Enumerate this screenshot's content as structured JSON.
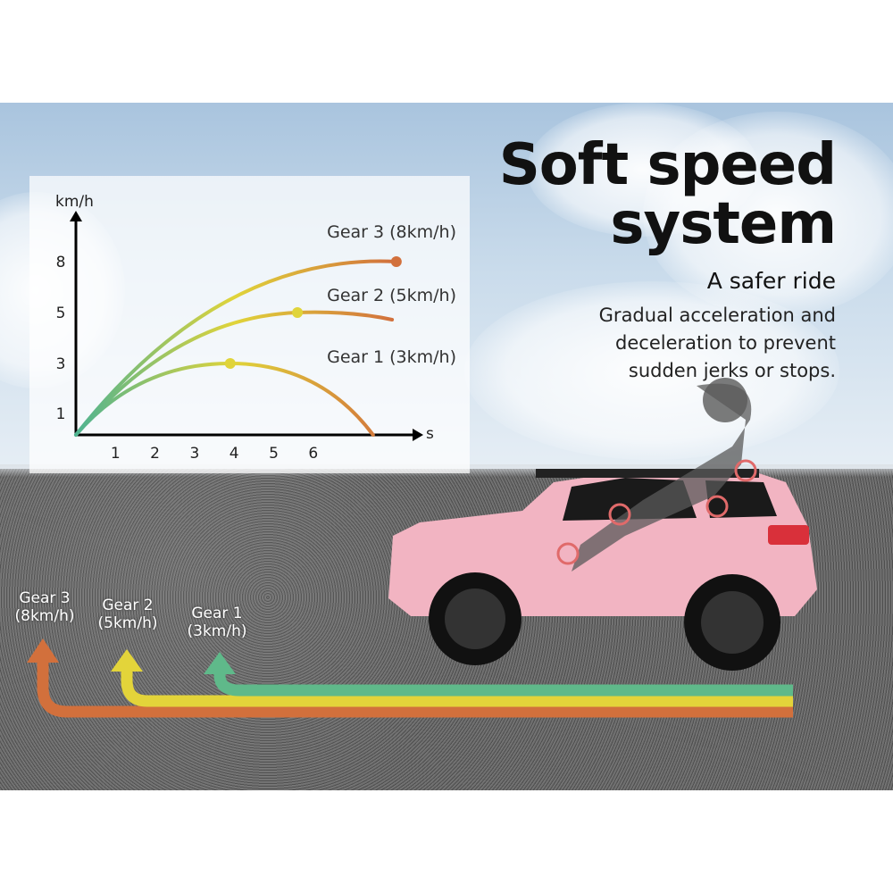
{
  "headline": {
    "line1": "Soft speed",
    "line2": "system"
  },
  "subheadline": "A safer ride",
  "description": [
    "Gradual acceleration and",
    "deceleration to prevent",
    "sudden jerks or stops."
  ],
  "gear_labels": [
    {
      "name": "Gear 3",
      "speed": "(8km/h)",
      "color": "#d2703c"
    },
    {
      "name": "Gear 2",
      "speed": "(5km/h)",
      "color": "#e3d43a"
    },
    {
      "name": "Gear 1",
      "speed": "(3km/h)",
      "color": "#5fb98a"
    }
  ],
  "chart_data": {
    "type": "line",
    "xlabel": "s",
    "ylabel": "km/h",
    "x_ticks": [
      "1",
      "2",
      "3",
      "4",
      "5",
      "6"
    ],
    "y_ticks": [
      "1",
      "3",
      "5",
      "8"
    ],
    "grid": false,
    "colors": {
      "start": "#4fb391",
      "mid": "#e0d43a",
      "end": "#d2703c"
    },
    "series": [
      {
        "name": "Gear 3 (8km/h)",
        "peak": [
          8.1,
          8
        ]
      },
      {
        "name": "Gear 2 (5km/h)",
        "peak": [
          5.6,
          5
        ]
      },
      {
        "name": "Gear 1  (3km/h)",
        "peak": [
          3.9,
          3
        ]
      }
    ]
  }
}
